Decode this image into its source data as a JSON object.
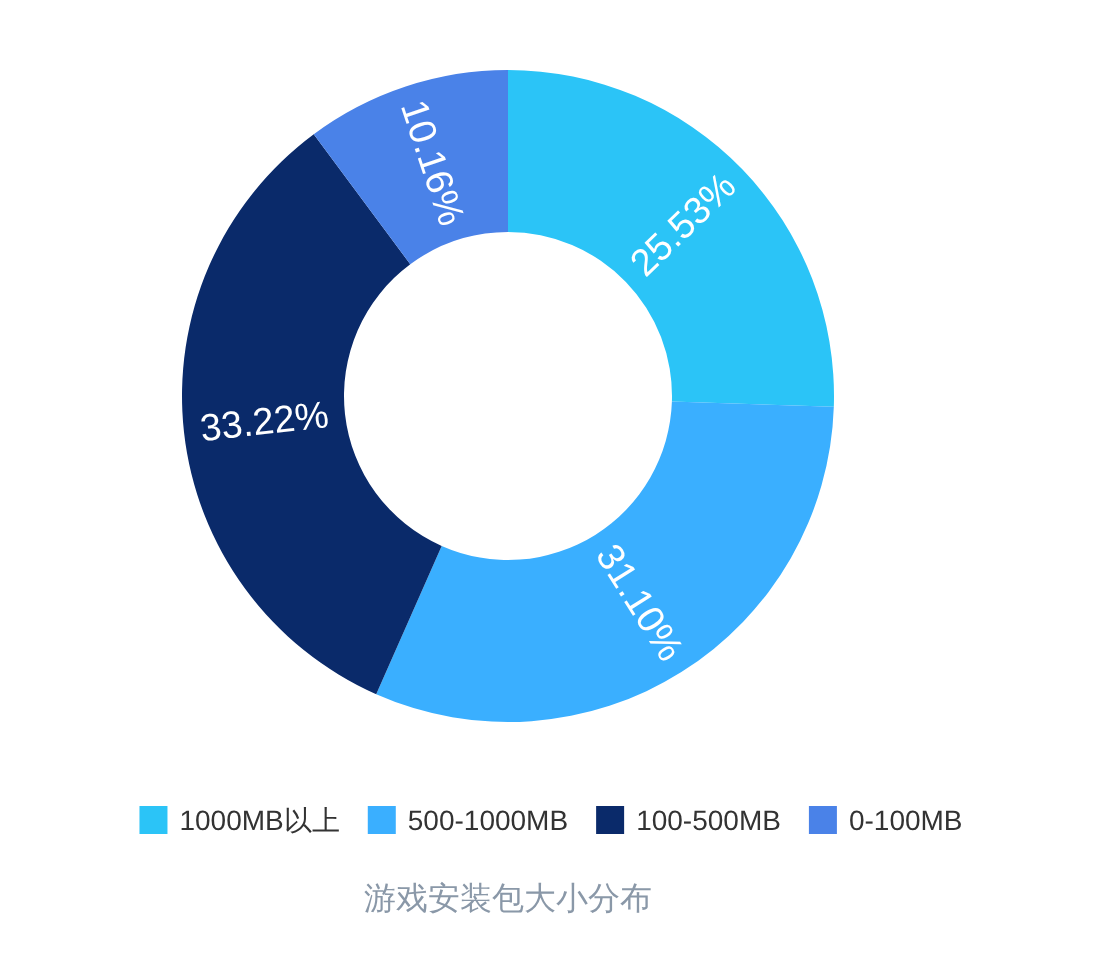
{
  "chart_data": {
    "type": "donut",
    "title": "游戏安装包大小分布",
    "categories": [
      "1000MB以上",
      "500-1000MB",
      "100-500MB",
      "0-100MB"
    ],
    "values": [
      25.53,
      31.1,
      33.22,
      10.16
    ],
    "colors": [
      "#2bc4f7",
      "#3aafff",
      "#0a2a6a",
      "#4a82e8"
    ],
    "value_labels": [
      "25.53%",
      "31.10%",
      "33.22%",
      "10.16%"
    ],
    "legend": "bottom"
  }
}
